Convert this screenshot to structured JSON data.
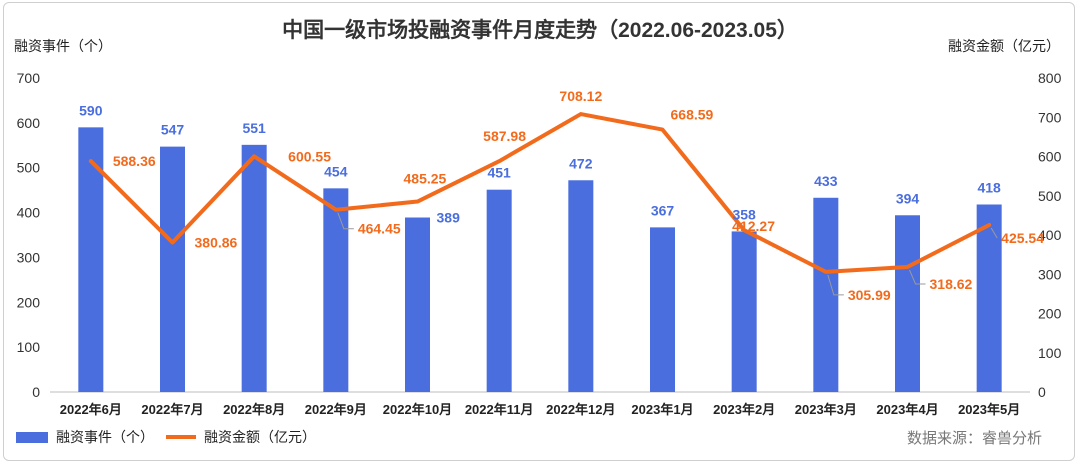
{
  "chart_data": {
    "type": "bar+line",
    "title": "中国一级市场投融资事件月度走势（2022.06-2023.05）",
    "ylabel_left": "融资事件（个）",
    "ylabel_right": "融资金额（亿元）",
    "ylim_left": [
      0,
      700
    ],
    "ylim_right": [
      0,
      800
    ],
    "yticks_left": [
      "0",
      "100",
      "200",
      "300",
      "400",
      "500",
      "600",
      "700"
    ],
    "yticks_right": [
      "0",
      "100",
      "200",
      "300",
      "400",
      "500",
      "600",
      "700",
      "800"
    ],
    "categories": [
      "2022年6月",
      "2022年7月",
      "2022年8月",
      "2022年9月",
      "2022年10月",
      "2022年11月",
      "2022年12月",
      "2023年1月",
      "2023年2月",
      "2023年3月",
      "2023年4月",
      "2023年5月"
    ],
    "series": [
      {
        "name": "融资事件（个）",
        "type": "bar",
        "axis": "left",
        "color": "#4a6ede",
        "values": [
          590,
          547,
          551,
          454,
          389,
          451,
          472,
          367,
          358,
          433,
          394,
          418
        ],
        "labels": [
          "590",
          "547",
          "551",
          "454",
          "389",
          "451",
          "472",
          "367",
          "358",
          "433",
          "394",
          "418"
        ]
      },
      {
        "name": "融资金额（亿元）",
        "type": "line",
        "axis": "right",
        "color": "#f26b1d",
        "values": [
          588.36,
          380.86,
          600.55,
          464.45,
          485.25,
          587.98,
          708.12,
          668.59,
          412.27,
          305.99,
          318.62,
          425.54
        ],
        "labels": [
          "588.36",
          "380.86",
          "600.55",
          "464.45",
          "485.25",
          "587.98",
          "708.12",
          "668.59",
          "412.27",
          "305.99",
          "318.62",
          "425.54"
        ]
      }
    ],
    "source": "数据来源：睿兽分析"
  }
}
